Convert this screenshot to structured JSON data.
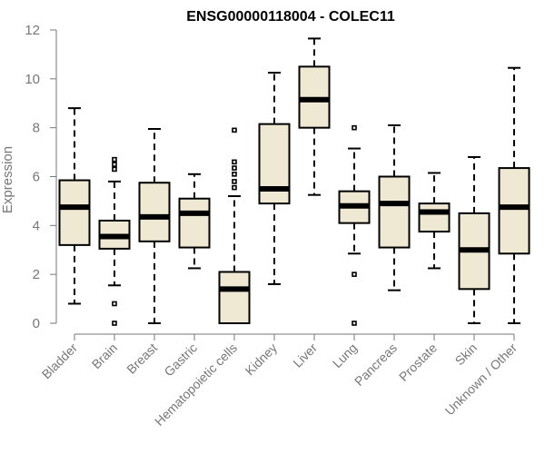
{
  "chart_data": {
    "type": "boxplot",
    "title": "ENSG00000118004 - COLEC11",
    "xlabel": "",
    "ylabel": "Expression",
    "ylim": [
      0,
      12
    ],
    "yticks": [
      0,
      2,
      4,
      6,
      8,
      10,
      12
    ],
    "categories": [
      "Bladder",
      "Brain",
      "Breast",
      "Gastric",
      "Hematopoietic cells",
      "Kidney",
      "Liver",
      "Lung",
      "Pancreas",
      "Prostate",
      "Skin",
      "Unknown / Other"
    ],
    "series": [
      {
        "name": "Bladder",
        "min": 0.8,
        "q1": 3.2,
        "median": 4.75,
        "q3": 5.85,
        "max": 8.8,
        "outliers": []
      },
      {
        "name": "Brain",
        "min": 1.55,
        "q1": 3.05,
        "median": 3.55,
        "q3": 4.2,
        "max": 5.8,
        "outliers": [
          6.3,
          6.5,
          6.7,
          0.8,
          0.0
        ]
      },
      {
        "name": "Breast",
        "min": 0.0,
        "q1": 3.35,
        "median": 4.35,
        "q3": 5.75,
        "max": 7.95,
        "outliers": []
      },
      {
        "name": "Gastric",
        "min": 2.25,
        "q1": 3.1,
        "median": 4.5,
        "q3": 5.1,
        "max": 6.1,
        "outliers": []
      },
      {
        "name": "Hematopoietic cells",
        "min": 0.0,
        "q1": 0.0,
        "median": 1.4,
        "q3": 2.1,
        "max": 5.2,
        "outliers": [
          5.55,
          5.8,
          6.1,
          6.35,
          6.6,
          7.9
        ]
      },
      {
        "name": "Kidney",
        "min": 1.6,
        "q1": 4.9,
        "median": 5.5,
        "q3": 8.15,
        "max": 10.25,
        "outliers": []
      },
      {
        "name": "Liver",
        "min": 5.25,
        "q1": 8.0,
        "median": 9.15,
        "q3": 10.5,
        "max": 11.65,
        "outliers": []
      },
      {
        "name": "Lung",
        "min": 2.85,
        "q1": 4.1,
        "median": 4.8,
        "q3": 5.4,
        "max": 7.15,
        "outliers": [
          8.0,
          2.0,
          0.0
        ]
      },
      {
        "name": "Pancreas",
        "min": 1.35,
        "q1": 3.1,
        "median": 4.9,
        "q3": 6.0,
        "max": 8.1,
        "outliers": []
      },
      {
        "name": "Prostate",
        "min": 2.25,
        "q1": 3.75,
        "median": 4.55,
        "q3": 4.9,
        "max": 6.15,
        "outliers": []
      },
      {
        "name": "Skin",
        "min": 0.0,
        "q1": 1.4,
        "median": 3.0,
        "q3": 4.5,
        "max": 6.8,
        "outliers": []
      },
      {
        "name": "Unknown / Other",
        "min": 0.0,
        "q1": 2.85,
        "median": 4.75,
        "q3": 6.35,
        "max": 10.45,
        "outliers": []
      }
    ]
  }
}
